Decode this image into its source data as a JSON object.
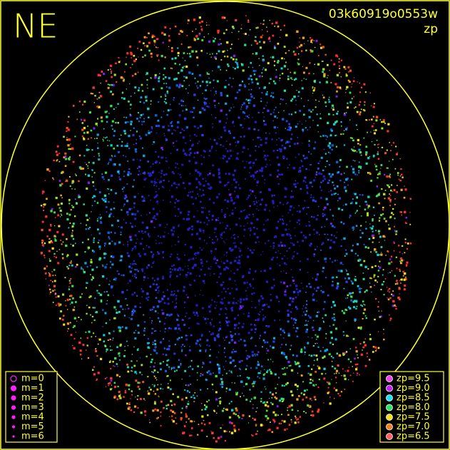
{
  "header": {
    "direction": "NE",
    "frame_id": "03k60919o0553w",
    "quantity": "zp"
  },
  "legend_magnitude": [
    "m=0",
    "m=1",
    "m=2",
    "m=3",
    "m=4",
    "m=5",
    "m=6"
  ],
  "legend_zp": [
    "zp=9.5",
    "zp=9.0",
    "zp=8.5",
    "zp=8.0",
    "zp=7.5",
    "zp=7.0",
    "zp=6.5"
  ]
}
